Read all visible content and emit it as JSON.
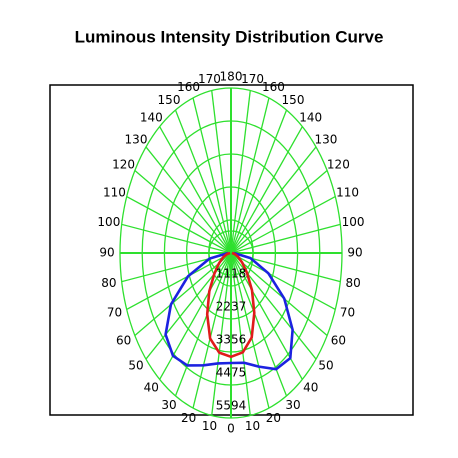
{
  "chart_data": {
    "type": "polar",
    "title": "Luminous Intensity Distribution Curve",
    "theta": [
      -90,
      -80,
      -70,
      -60,
      -50,
      -40,
      -30,
      -20,
      -10,
      0,
      10,
      20,
      30,
      40,
      50,
      60,
      70,
      80,
      90
    ],
    "series": [
      {
        "color": "#1c22e0",
        "values": [
          150,
          1100,
          2300,
          3500,
          4300,
          4550,
          4400,
          4050,
          3800,
          3730,
          3780,
          4100,
          4550,
          4650,
          4050,
          3100,
          2000,
          1000,
          150
        ]
      },
      {
        "color": "#e01b1b",
        "values": [
          50,
          200,
          420,
          700,
          1100,
          1700,
          2400,
          3080,
          3430,
          3520,
          3420,
          3050,
          2350,
          1650,
          1050,
          650,
          380,
          180,
          50
        ]
      }
    ],
    "rlim": [
      0,
      5594
    ],
    "rticks": [
      1118,
      2237,
      3356,
      4475,
      5594
    ],
    "angle_ticks": [
      0,
      10,
      20,
      30,
      40,
      50,
      60,
      70,
      80,
      90,
      100,
      110,
      120,
      130,
      140,
      150,
      160,
      170,
      180
    ],
    "grid_color": "#2ee02e"
  }
}
